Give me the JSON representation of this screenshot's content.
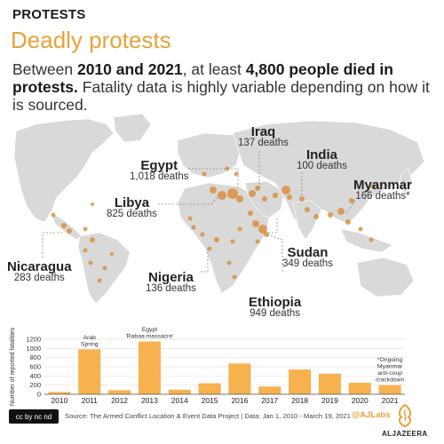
{
  "header": {
    "kicker": "PROTESTS",
    "title": "Deadly protests",
    "subtitle_parts": [
      "Between ",
      "2010 and 2021",
      ", at least ",
      "4,800 people died in protests.",
      " Fatality data is highly variable depending on how it is sourced."
    ]
  },
  "map_labels": [
    {
      "name": "Iraq",
      "deaths": "137 deaths"
    },
    {
      "name": "Egypt",
      "deaths": "1,018 deaths"
    },
    {
      "name": "India",
      "deaths": "100 deaths"
    },
    {
      "name": "Libya",
      "deaths": "825 deaths"
    },
    {
      "name": "Myanmar",
      "deaths": "166 deaths*"
    },
    {
      "name": "Sudan",
      "deaths": "349 deaths"
    },
    {
      "name": "Nicaragua",
      "deaths": "283 deaths"
    },
    {
      "name": "Nigeria",
      "deaths": "136 deaths"
    },
    {
      "name": "Ethiopia",
      "deaths": "949 deaths"
    }
  ],
  "chart_data": {
    "type": "bar",
    "categories": [
      "2010",
      "2011",
      "2012",
      "2013",
      "2014",
      "2015",
      "2016",
      "2017",
      "2018",
      "2019",
      "2020",
      "2021"
    ],
    "values": [
      50,
      980,
      90,
      1150,
      100,
      240,
      670,
      170,
      540,
      450,
      250,
      200
    ],
    "ylabel": "Number of reported fatalities",
    "ylim": [
      0,
      1200
    ],
    "yticks": [
      0,
      200,
      400,
      600,
      800,
      1000,
      1200
    ],
    "grid": true,
    "annotations": [
      {
        "category": "2011",
        "lines": [
          "Arab",
          "Spring"
        ]
      },
      {
        "category": "2013",
        "lines": [
          "Egypt",
          "'Rabaa massacre'"
        ]
      },
      {
        "category": "2021",
        "lines": [
          "*Ongoing",
          "Myanmar",
          "anti-coup",
          "crackdown"
        ]
      }
    ]
  },
  "footer": {
    "license": "cc by nc nd",
    "source": "Source: The Armed Conflict Location & Event Data Project | Data: Jan 1, 2010 - March 19, 2021",
    "handle": "@AJLabs",
    "logo_text": "ALJAZEERA"
  },
  "colors": {
    "accent": "#e8a13c",
    "bar": "#f5b24f",
    "land": "#d9d9d9",
    "dot": "#d9862a"
  }
}
